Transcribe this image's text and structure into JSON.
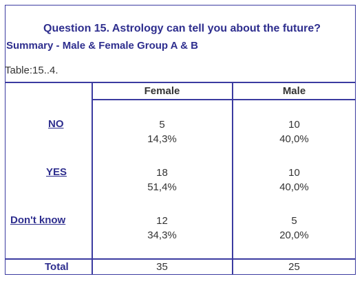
{
  "header": {
    "title": "Question 15. Astrology can tell you about the future?",
    "subtitle": "Summary - Male &  Female Group A & B",
    "table_id": "Table:15..4."
  },
  "columns": [
    "Female",
    "Male"
  ],
  "rows": [
    {
      "label": "NO",
      "female_count": "5",
      "female_pct": "14,3%",
      "male_count": "10",
      "male_pct": "40,0%"
    },
    {
      "label": "YES",
      "female_count": "18",
      "female_pct": "51,4%",
      "male_count": "10",
      "male_pct": "40,0%"
    },
    {
      "label": "Don't know",
      "female_count": "12",
      "female_pct": "34,3%",
      "male_count": "5",
      "male_pct": "20,0%"
    }
  ],
  "total": {
    "label": "Total",
    "female": "35",
    "male": "25"
  },
  "colors": {
    "accent": "#2e2e8e",
    "border": "#3a3aa0",
    "text": "#333333"
  }
}
